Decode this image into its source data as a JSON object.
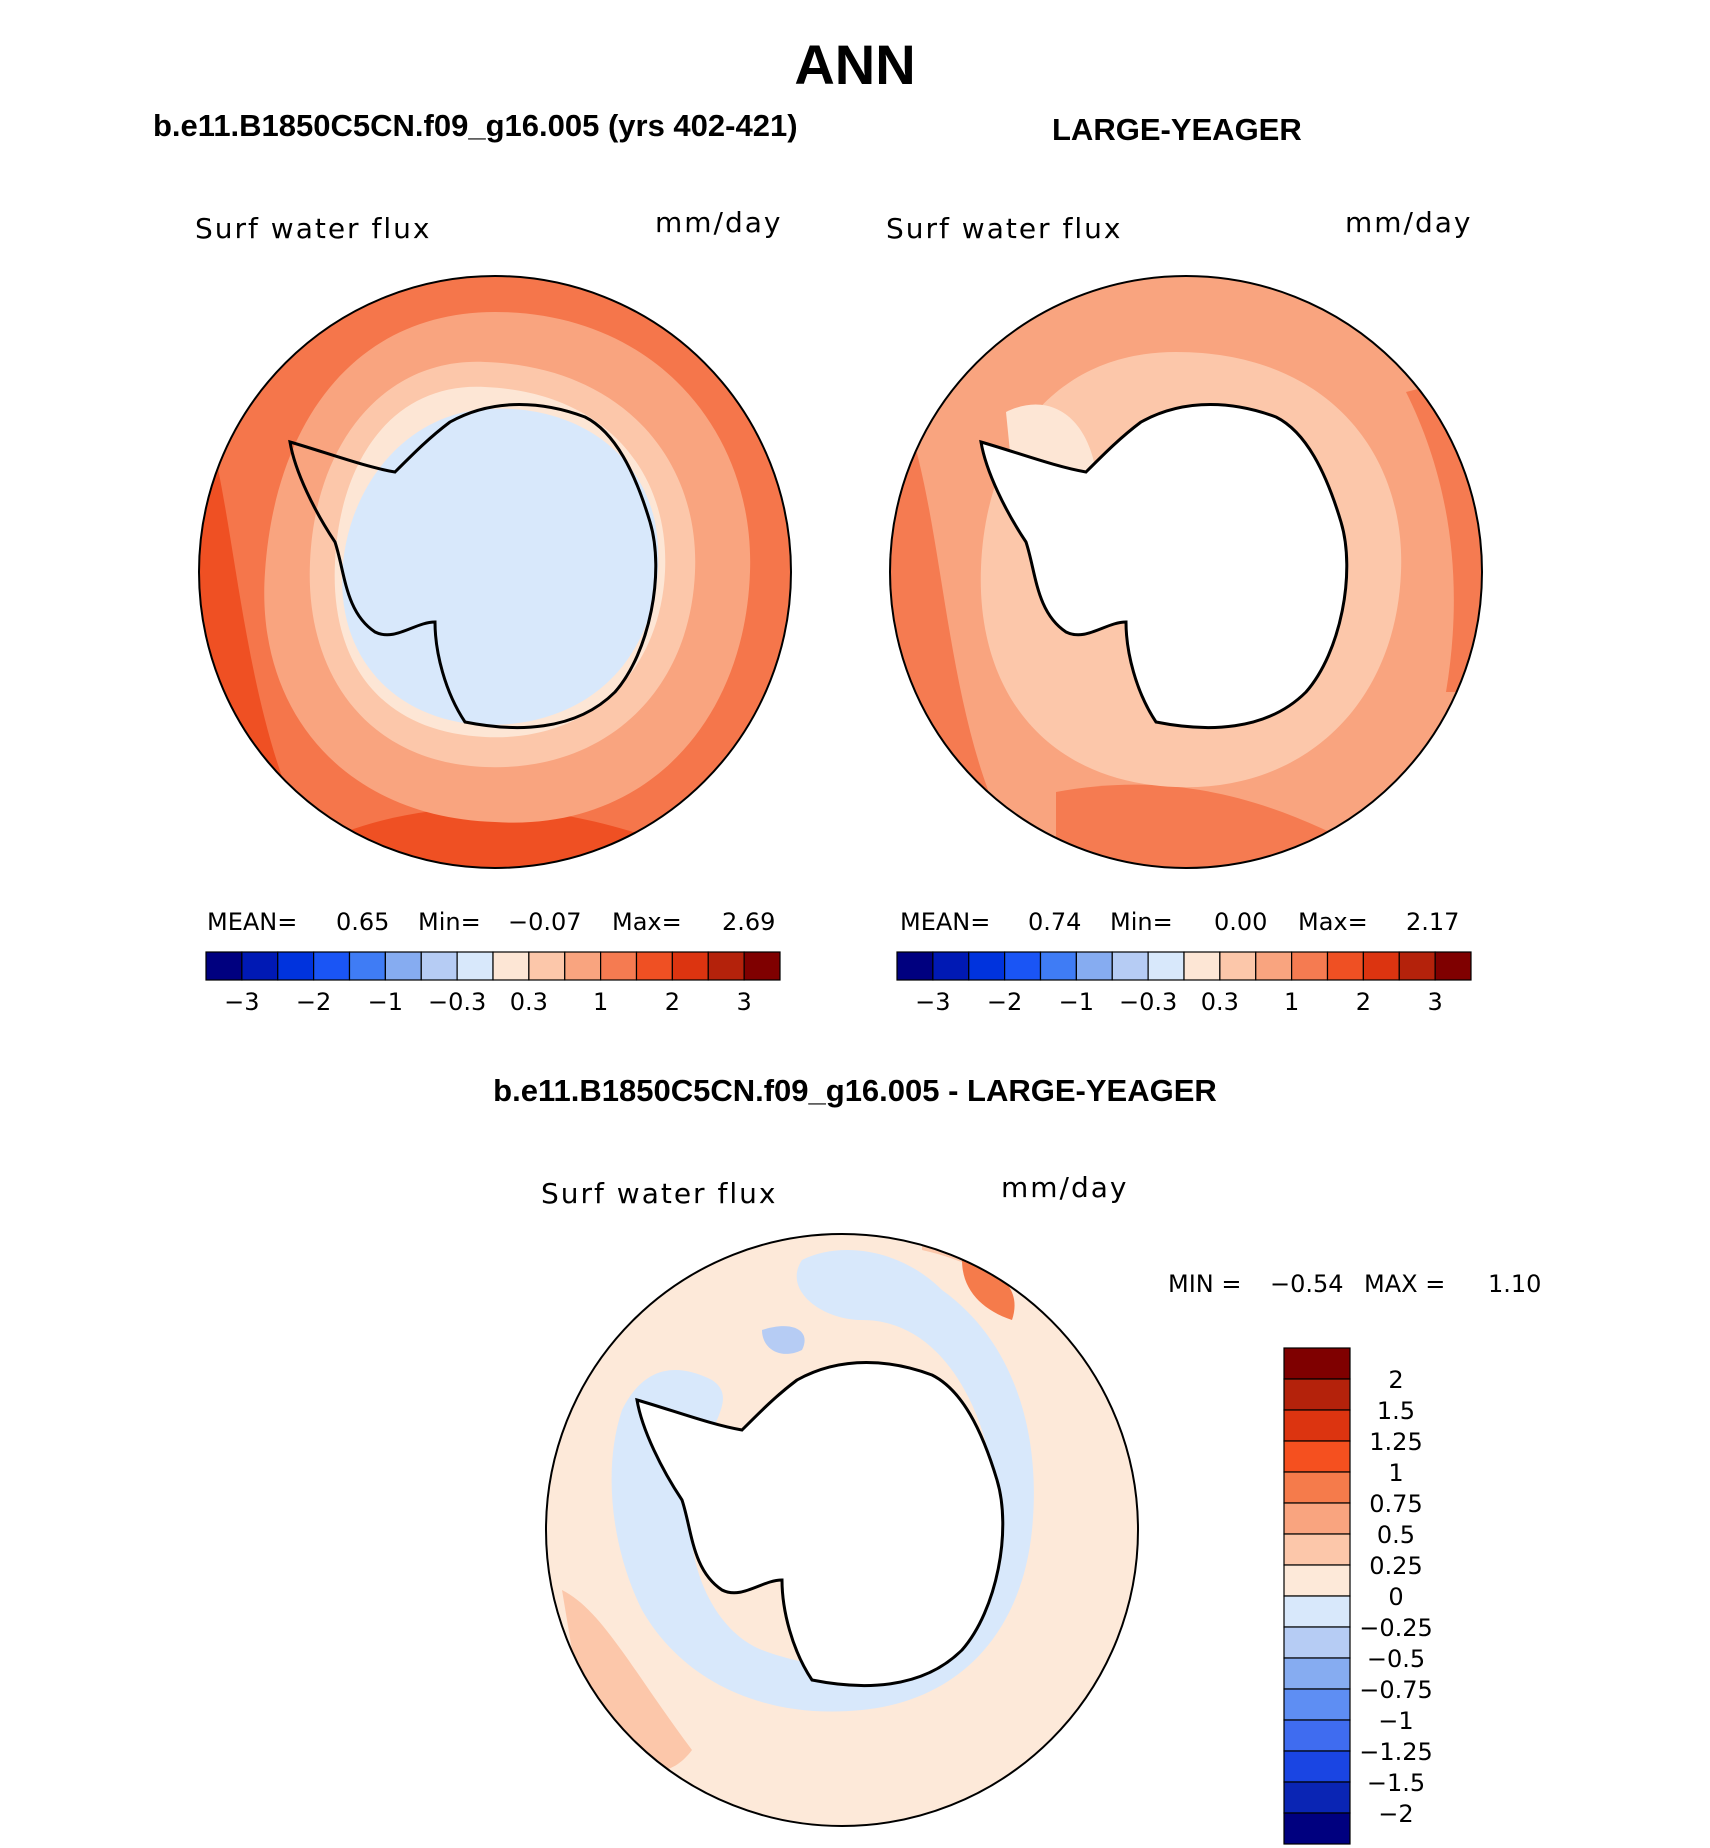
{
  "page_title": "ANN",
  "colors": {
    "ocean_low": "#fcdcc8",
    "ocean_mid": "#f9a47f",
    "ocean_high": "#f5764b",
    "ocean_max": "#e8431f",
    "ice": "#d7e9fa",
    "blue_light": "#b9d3f7",
    "blue_mid": "#8ab3f2"
  },
  "panels": [
    {
      "id": "model",
      "case_title": "b.e11.B1850C5CN.f09_g16.005 (yrs 402-421)",
      "variable": "Surf water flux",
      "units": "mm/day",
      "stats": {
        "mean_label": "MEAN=",
        "mean": "0.65",
        "min_label": "Min=",
        "min": "−0.07",
        "max_label": "Max=",
        "max": "2.69"
      },
      "colorbar": {
        "colors": [
          "#00007f",
          "#0019b4",
          "#0033dd",
          "#1a55f5",
          "#3f7cf5",
          "#86acf1",
          "#b6ccf4",
          "#d8e8fb",
          "#fde6d5",
          "#fcc7aa",
          "#f9a47f",
          "#f57b51",
          "#ef5023",
          "#dc3410",
          "#b4220b",
          "#7f0000"
        ],
        "ticks": [
          "−3",
          "−2",
          "−1",
          "−0.3",
          "0.3",
          "1",
          "2",
          "3"
        ]
      }
    },
    {
      "id": "obs",
      "case_title": "LARGE-YEAGER",
      "variable": "Surf water flux",
      "units": "mm/day",
      "stats": {
        "mean_label": "MEAN=",
        "mean": "0.74",
        "min_label": "Min=",
        "min": "0.00",
        "max_label": "Max=",
        "max": "2.17"
      },
      "colorbar": {
        "colors": [
          "#00007f",
          "#0019b4",
          "#0033dd",
          "#1a55f5",
          "#3f7cf5",
          "#86acf1",
          "#b6ccf4",
          "#d8e8fb",
          "#fde6d5",
          "#fcc7aa",
          "#f9a47f",
          "#f57b51",
          "#ef5023",
          "#dc3410",
          "#b4220b",
          "#7f0000"
        ],
        "ticks": [
          "−3",
          "−2",
          "−1",
          "−0.3",
          "0.3",
          "1",
          "2",
          "3"
        ]
      }
    },
    {
      "id": "diff",
      "case_title": "b.e11.B1850C5CN.f09_g16.005 - LARGE-YEAGER",
      "variable": "Surf water flux",
      "units": "mm/day",
      "stats": {
        "min_label": "MIN =",
        "min": "−0.54",
        "max_label": "MAX =",
        "max": "1.10"
      },
      "colorbar": {
        "colors": [
          "#7f0000",
          "#b4220b",
          "#dc3410",
          "#f5501f",
          "#f57b4b",
          "#f9a47f",
          "#fcc7aa",
          "#fde9d9",
          "#d8e8fb",
          "#b6ccf4",
          "#86acf1",
          "#5e8ef3",
          "#3f6cf0",
          "#1a45e3",
          "#0a25b4",
          "#00007f"
        ],
        "ticks": [
          "2",
          "1.5",
          "1.25",
          "1",
          "0.75",
          "0.5",
          "0.25",
          "0",
          "−0.25",
          "−0.5",
          "−0.75",
          "−1",
          "−1.25",
          "−1.5",
          "−2"
        ]
      }
    }
  ]
}
